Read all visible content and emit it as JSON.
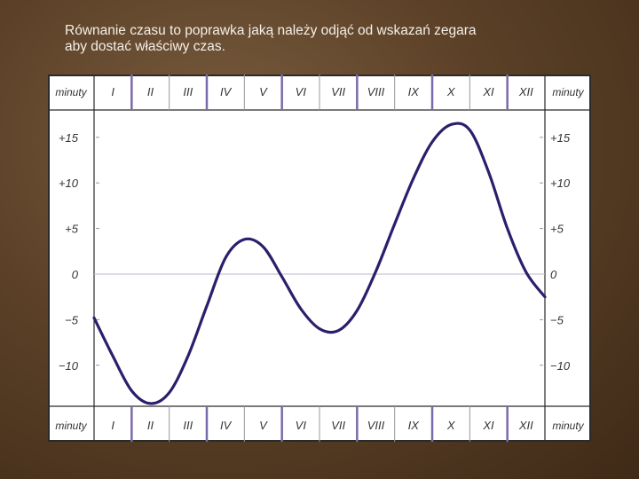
{
  "caption": {
    "line1": "Równanie czasu to poprawka jaką należy odjąć od wskazań zegara",
    "line2": "aby dostać właściwy czas."
  },
  "colors": {
    "curve": "#2b1f6b",
    "grid": "#b8b8c8",
    "frame": "#2a2a2a",
    "month_separator": "#7a6aa8"
  },
  "chart_data": {
    "type": "line",
    "corner_label": "minuty",
    "months": [
      "I",
      "II",
      "III",
      "IV",
      "V",
      "VI",
      "VII",
      "VIII",
      "IX",
      "X",
      "XI",
      "XII"
    ],
    "ylim": [
      -14.5,
      18
    ],
    "yticks": [
      {
        "value": 15,
        "label": "+15"
      },
      {
        "value": 10,
        "label": "+10"
      },
      {
        "value": 5,
        "label": "+5"
      },
      {
        "value": 0,
        "label": "0"
      },
      {
        "value": -5,
        "label": "−5"
      },
      {
        "value": -10,
        "label": "−10"
      }
    ],
    "series": [
      {
        "x": [
          0,
          0.5,
          1.0,
          1.5,
          2.0,
          2.5,
          3.0,
          3.5,
          4.0,
          4.5,
          5.0,
          5.5,
          6.0,
          6.5,
          7.0,
          7.5,
          8.0,
          8.5,
          9.0,
          9.5,
          10.0,
          10.5,
          11.0,
          11.5,
          12.0
        ],
        "y": [
          -4.8,
          -9.0,
          -12.8,
          -14.2,
          -13.0,
          -9.0,
          -3.5,
          1.8,
          3.8,
          3.0,
          -0.3,
          -3.8,
          -6.0,
          -6.2,
          -4.0,
          0.3,
          5.5,
          10.5,
          14.5,
          16.4,
          15.8,
          11.2,
          5.0,
          0.2,
          -2.5
        ]
      }
    ]
  }
}
